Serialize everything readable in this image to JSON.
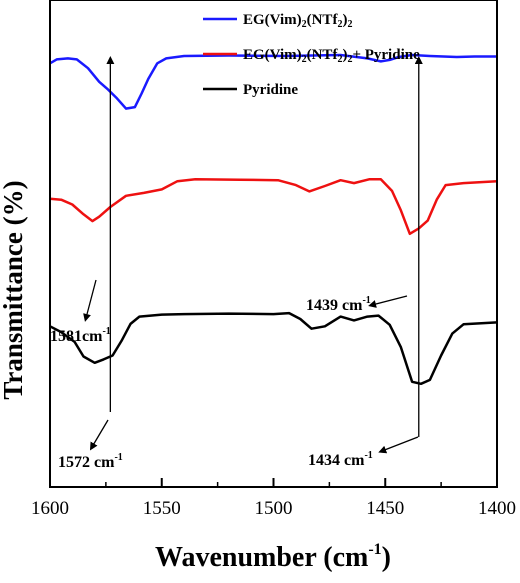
{
  "chart_data": {
    "type": "line",
    "xlabel": "Wavenumber (cm",
    "xlabel_sup": "-1",
    "xlabel_close": ")",
    "ylabel": "Transmittance (%)",
    "xlim": [
      1600,
      1400
    ],
    "x_reversed": true,
    "x_ticks": [
      "1600",
      "1550",
      "1500",
      "1450",
      "1400"
    ],
    "y_ticks_shown": false,
    "legend_position": "top-right",
    "series": [
      {
        "name": "EG(Vim)2(NTf2)2",
        "legend_parts": [
          "EG(Vim)",
          "2",
          "(NTf",
          "2",
          ")",
          "2"
        ],
        "color": "#1a1aff",
        "points": [
          [
            1600,
            0.87
          ],
          [
            1597,
            0.878
          ],
          [
            1592,
            0.88
          ],
          [
            1588,
            0.878
          ],
          [
            1583,
            0.86
          ],
          [
            1578,
            0.832
          ],
          [
            1574,
            0.816
          ],
          [
            1570,
            0.798
          ],
          [
            1566,
            0.777
          ],
          [
            1562,
            0.78
          ],
          [
            1559,
            0.808
          ],
          [
            1556,
            0.838
          ],
          [
            1552,
            0.87
          ],
          [
            1548,
            0.88
          ],
          [
            1540,
            0.885
          ],
          [
            1520,
            0.886
          ],
          [
            1495,
            0.885
          ],
          [
            1470,
            0.887
          ],
          [
            1458,
            0.88
          ],
          [
            1452,
            0.874
          ],
          [
            1448,
            0.877
          ],
          [
            1444,
            0.883
          ],
          [
            1438,
            0.887
          ],
          [
            1430,
            0.885
          ],
          [
            1418,
            0.883
          ],
          [
            1410,
            0.884
          ],
          [
            1400,
            0.884
          ]
        ]
      },
      {
        "name": "EG(Vim)2(NTf2)2+ Pyridine",
        "legend_parts": [
          "EG(Vim)",
          "2",
          "(NTf",
          "2",
          ")",
          "2",
          "+ Pyridine"
        ],
        "color": "#ee1111",
        "points": [
          [
            1600,
            0.592
          ],
          [
            1595,
            0.59
          ],
          [
            1590,
            0.58
          ],
          [
            1585,
            0.56
          ],
          [
            1581,
            0.546
          ],
          [
            1578,
            0.555
          ],
          [
            1573,
            0.575
          ],
          [
            1566,
            0.598
          ],
          [
            1558,
            0.604
          ],
          [
            1550,
            0.611
          ],
          [
            1543,
            0.628
          ],
          [
            1535,
            0.632
          ],
          [
            1515,
            0.631
          ],
          [
            1498,
            0.63
          ],
          [
            1490,
            0.62
          ],
          [
            1484,
            0.607
          ],
          [
            1477,
            0.618
          ],
          [
            1470,
            0.63
          ],
          [
            1464,
            0.624
          ],
          [
            1457,
            0.632
          ],
          [
            1452,
            0.632
          ],
          [
            1447,
            0.608
          ],
          [
            1443,
            0.568
          ],
          [
            1439,
            0.52
          ],
          [
            1435,
            0.531
          ],
          [
            1431,
            0.547
          ],
          [
            1427,
            0.59
          ],
          [
            1423,
            0.62
          ],
          [
            1415,
            0.624
          ],
          [
            1400,
            0.628
          ]
        ]
      },
      {
        "name": "Pyridine",
        "legend_parts": [
          "Pyridine"
        ],
        "color": "#000000",
        "points": [
          [
            1600,
            0.33
          ],
          [
            1595,
            0.318
          ],
          [
            1589,
            0.298
          ],
          [
            1585,
            0.268
          ],
          [
            1580,
            0.255
          ],
          [
            1576,
            0.262
          ],
          [
            1572,
            0.27
          ],
          [
            1568,
            0.3
          ],
          [
            1564,
            0.335
          ],
          [
            1560,
            0.35
          ],
          [
            1550,
            0.354
          ],
          [
            1540,
            0.355
          ],
          [
            1520,
            0.356
          ],
          [
            1500,
            0.355
          ],
          [
            1493,
            0.357
          ],
          [
            1488,
            0.345
          ],
          [
            1483,
            0.325
          ],
          [
            1477,
            0.33
          ],
          [
            1470,
            0.35
          ],
          [
            1464,
            0.342
          ],
          [
            1458,
            0.35
          ],
          [
            1453,
            0.352
          ],
          [
            1448,
            0.333
          ],
          [
            1443,
            0.287
          ],
          [
            1438,
            0.216
          ],
          [
            1434,
            0.212
          ],
          [
            1430,
            0.22
          ],
          [
            1425,
            0.27
          ],
          [
            1420,
            0.315
          ],
          [
            1415,
            0.334
          ],
          [
            1400,
            0.338
          ]
        ]
      }
    ],
    "annotations": [
      {
        "text": "1581cm",
        "sup": "-1",
        "type": "small"
      },
      {
        "text": "1572 cm",
        "sup": "-1",
        "type": "small"
      },
      {
        "text": "1439 cm",
        "sup": "-1",
        "type": "small"
      },
      {
        "text": "1434 cm",
        "sup": "-1",
        "type": "small"
      }
    ],
    "vertical_arrows": [
      1573,
      1435
    ]
  }
}
